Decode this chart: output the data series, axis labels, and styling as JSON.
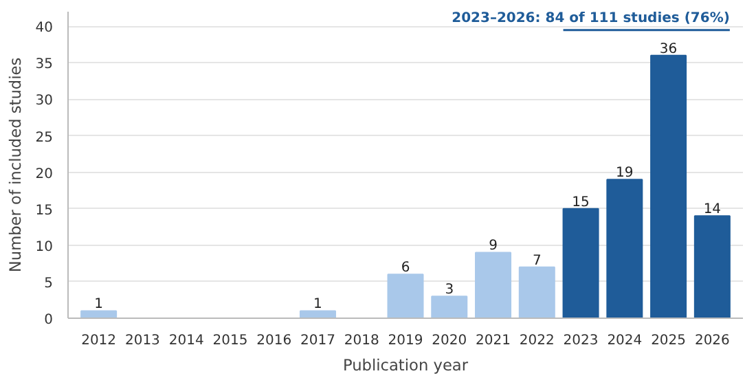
{
  "chart_data": {
    "type": "bar",
    "xlabel": "Publication year",
    "ylabel": "Number of included studies",
    "categories": [
      "2012",
      "2013",
      "2014",
      "2015",
      "2016",
      "2017",
      "2018",
      "2019",
      "2020",
      "2021",
      "2022",
      "2023",
      "2024",
      "2025",
      "2026"
    ],
    "values": [
      1,
      0,
      0,
      0,
      0,
      1,
      0,
      6,
      3,
      9,
      7,
      15,
      19,
      36,
      14
    ],
    "colors": [
      "#a9c8ea",
      "#a9c8ea",
      "#a9c8ea",
      "#a9c8ea",
      "#a9c8ea",
      "#a9c8ea",
      "#a9c8ea",
      "#a9c8ea",
      "#a9c8ea",
      "#a9c8ea",
      "#a9c8ea",
      "#1f5c99",
      "#1f5c99",
      "#1f5c99",
      "#1f5c99"
    ],
    "value_labels": [
      "1",
      null,
      null,
      null,
      null,
      "1",
      null,
      "6",
      "3",
      "9",
      "7",
      "15",
      "19",
      "36",
      "14"
    ],
    "ylim": [
      0,
      42
    ],
    "yticks": [
      0,
      5,
      10,
      15,
      20,
      25,
      30,
      35,
      40
    ],
    "grid": "y",
    "annotations": [
      "2023–2026: 84 of 111 studies (76%)"
    ]
  }
}
